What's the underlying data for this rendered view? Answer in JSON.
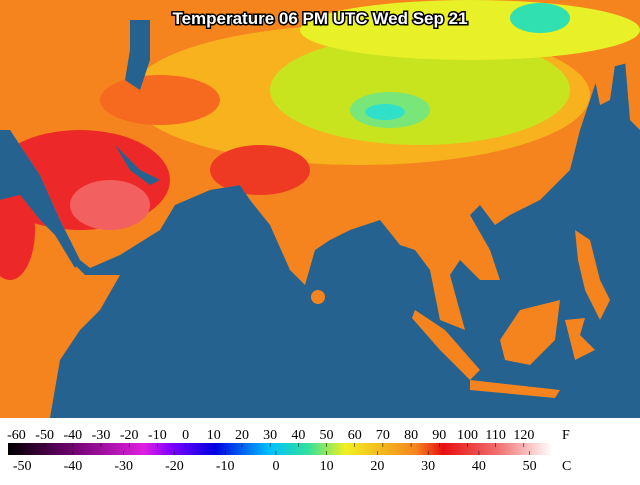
{
  "title": "Temperature 06 PM UTC Wed Sep 21",
  "legend": {
    "fahrenheit": {
      "unit": "F",
      "range": [
        -63,
        130
      ],
      "ticks": [
        -60,
        -50,
        -40,
        -30,
        -20,
        -10,
        0,
        10,
        20,
        30,
        40,
        50,
        60,
        70,
        80,
        90,
        100,
        110,
        120
      ]
    },
    "celsius": {
      "unit": "C",
      "range": [
        -52.8,
        54.4
      ],
      "ticks": [
        -50,
        -40,
        -30,
        -20,
        -10,
        0,
        10,
        20,
        30,
        40,
        50
      ]
    }
  }
}
